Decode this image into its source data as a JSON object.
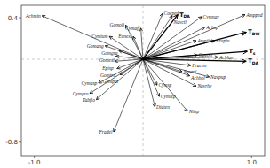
{
  "chart_data": {
    "type": "biplot",
    "xlim": [
      -1.12,
      1.12
    ],
    "ylim": [
      -0.93,
      0.52
    ],
    "xticks": [
      {
        "value": -1.0,
        "label": "-1.0"
      },
      {
        "value": 1.0,
        "label": "1.0"
      }
    ],
    "yticks": [
      -0.8,
      0.4
    ],
    "species": [
      {
        "name": "Achmin",
        "x": -0.93,
        "y": 0.42
      },
      {
        "name": "Cocped",
        "x": 0.18,
        "y": 0.44
      },
      {
        "name": "Navctl",
        "x": 0.27,
        "y": 0.42
      },
      {
        "name": "Cymnav",
        "x": 0.54,
        "y": 0.41
      },
      {
        "name": "Ampped",
        "x": 0.94,
        "y": 0.43
      },
      {
        "name": "Gomoli",
        "x": -0.16,
        "y": 0.33
      },
      {
        "name": "Cymaff",
        "x": -0.02,
        "y": 0.3
      },
      {
        "name": "Achsp",
        "x": 0.57,
        "y": 0.31
      },
      {
        "name": "Cymtum",
        "x": -0.31,
        "y": 0.22
      },
      {
        "name": "Eunexi",
        "x": -0.09,
        "y": 0.22
      },
      {
        "name": "Ampthu",
        "x": 0.49,
        "y": 0.18
      },
      {
        "name": "Frapin",
        "x": 0.66,
        "y": 0.18
      },
      {
        "name": "Gomang",
        "x": -0.35,
        "y": 0.13
      },
      {
        "name": "Gomgra",
        "x": -0.22,
        "y": 0.08
      },
      {
        "name": "Gomexi",
        "x": -0.25,
        "y": 0.03
      },
      {
        "name": "Opeols",
        "x": 0.5,
        "y": 0.04
      },
      {
        "name": "Achlan",
        "x": 0.69,
        "y": 0.02
      },
      {
        "name": "Episp",
        "x": -0.26,
        "y": -0.02
      },
      {
        "name": "Fracon",
        "x": 0.44,
        "y": -0.06
      },
      {
        "name": "Gomtru",
        "x": -0.24,
        "y": -0.09
      },
      {
        "name": "Gompar",
        "x": -0.21,
        "y": -0.15
      },
      {
        "name": "Navrei",
        "x": 0.36,
        "y": -0.12
      },
      {
        "name": "Achhol",
        "x": 0.43,
        "y": -0.16
      },
      {
        "name": "Navpup",
        "x": 0.61,
        "y": -0.17
      },
      {
        "name": "Cymasp",
        "x": -0.41,
        "y": -0.23
      },
      {
        "name": "Cymgra",
        "x": -0.49,
        "y": -0.33
      },
      {
        "name": "Cymsp",
        "x": 0.13,
        "y": -0.25
      },
      {
        "name": "Navrhy",
        "x": 0.49,
        "y": -0.26
      },
      {
        "name": "Cymlep",
        "x": 0.15,
        "y": -0.36
      },
      {
        "name": "Tabflo",
        "x": -0.43,
        "y": -0.39
      },
      {
        "name": "Diaten",
        "x": 0.11,
        "y": -0.46
      },
      {
        "name": "Nitsp",
        "x": 0.41,
        "y": -0.5
      },
      {
        "name": "Fradel",
        "x": -0.27,
        "y": -0.7
      }
    ],
    "indices": [
      {
        "label": "TDA",
        "x": 0.32,
        "y": 0.43
      },
      {
        "label": "TDW",
        "x": 0.95,
        "y": 0.26
      },
      {
        "label": "Ts",
        "x": 0.96,
        "y": 0.075
      },
      {
        "label": "TDA",
        "x": 0.95,
        "y": -0.02
      }
    ]
  }
}
